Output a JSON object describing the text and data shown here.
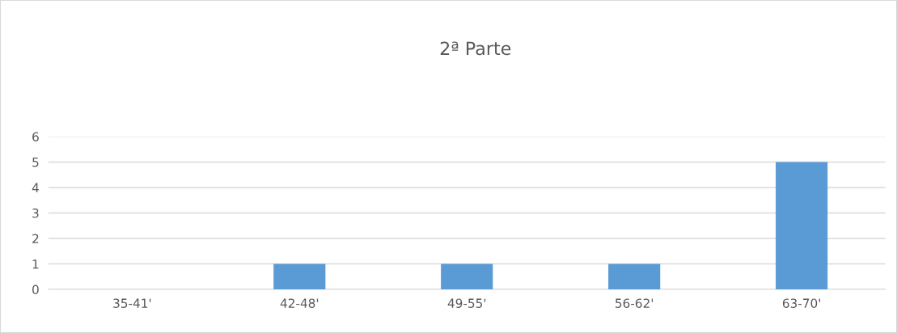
{
  "chart_data": {
    "type": "bar",
    "title": "2ª Parte",
    "categories": [
      "35-41'",
      "42-48'",
      "49-55'",
      "56-62'",
      "63-70'"
    ],
    "values": [
      0,
      1,
      1,
      1,
      5
    ],
    "color": "#5b9bd5",
    "ylim": [
      0,
      6
    ],
    "yticks": [
      0,
      1,
      2,
      3,
      4,
      5,
      6
    ],
    "grid": "y"
  }
}
